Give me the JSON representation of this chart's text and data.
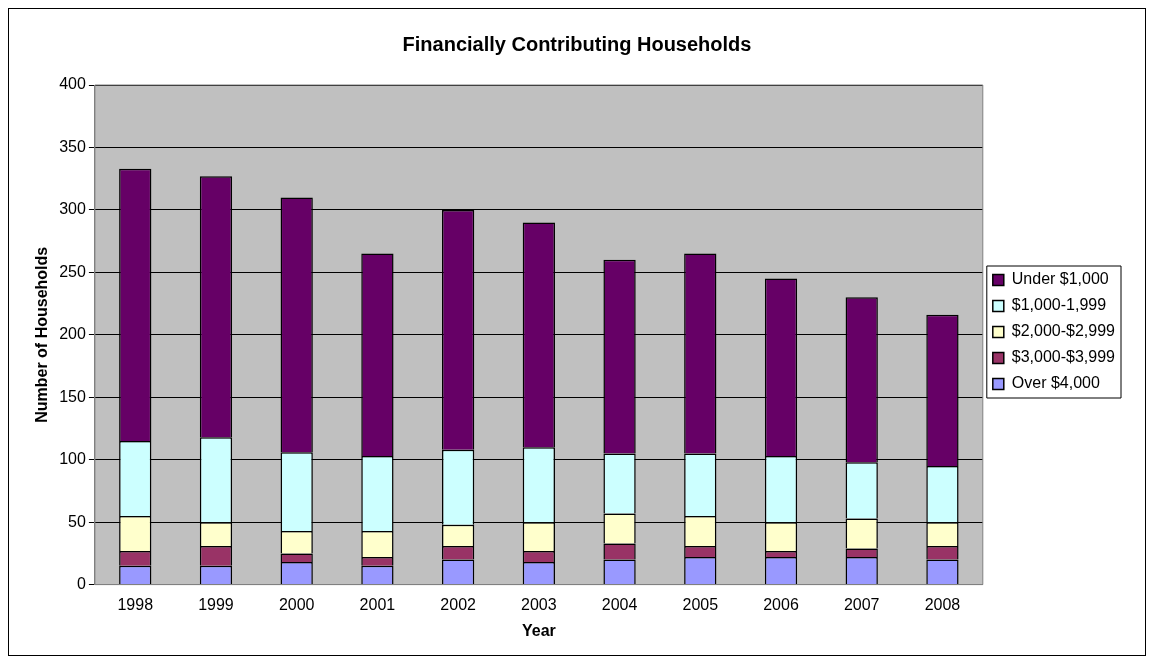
{
  "chart_data": {
    "type": "bar",
    "title": "Financially Contributing Households",
    "xlabel": "Year",
    "ylabel": "Number of Households",
    "categories": [
      "1998",
      "1999",
      "2000",
      "2001",
      "2002",
      "2003",
      "2004",
      "2005",
      "2006",
      "2007",
      "2008"
    ],
    "stacked": true,
    "ylim": [
      0,
      400
    ],
    "yticks": [
      0,
      50,
      100,
      150,
      200,
      250,
      300,
      350,
      400
    ],
    "grid": "y",
    "legend": "right",
    "series": [
      {
        "name": "Over $4,000",
        "color": "#9999ff",
        "values": [
          15,
          15,
          18,
          15,
          20,
          18,
          20,
          22,
          22,
          22,
          20
        ]
      },
      {
        "name": "$3,000-$3,999",
        "color": "#993366",
        "values": [
          12,
          16,
          7,
          7,
          11,
          9,
          13,
          9,
          5,
          7,
          11
        ]
      },
      {
        "name": "$2,000-$2,999",
        "color": "#ffffcc",
        "values": [
          28,
          19,
          18,
          21,
          17,
          23,
          24,
          24,
          23,
          24,
          19
        ]
      },
      {
        "name": "$1,000-1,999",
        "color": "#ccffff",
        "values": [
          60,
          68,
          63,
          60,
          60,
          60,
          48,
          50,
          53,
          45,
          45
        ]
      },
      {
        "name": "Under $1,000",
        "color": "#660066",
        "values": [
          218,
          209,
          204,
          162,
          192,
          180,
          155,
          160,
          142,
          132,
          121
        ]
      }
    ]
  }
}
